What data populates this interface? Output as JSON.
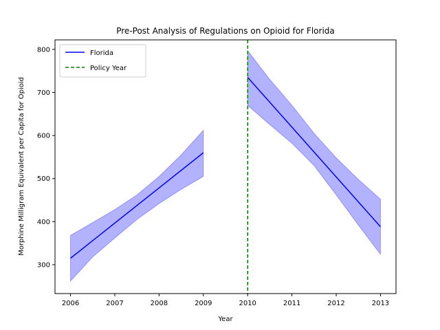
{
  "chart_data": {
    "type": "line",
    "title": "Pre-Post Analysis of Regulations on Opioid for Florida",
    "xlabel": "Year",
    "ylabel": "Morphine Milligram Equivalent per Capita for Opioid",
    "xlim": [
      2005.65,
      2013.35
    ],
    "ylim": [
      233,
      822
    ],
    "xticks": [
      2006,
      2007,
      2008,
      2009,
      2010,
      2011,
      2012,
      2013
    ],
    "yticks": [
      300,
      400,
      500,
      600,
      700,
      800
    ],
    "grid": false,
    "legend_position": "upper-left",
    "colors": {
      "line": "#0000ff",
      "band": "#0000ff",
      "policy": "#008000"
    },
    "series": [
      {
        "name": "Florida",
        "segments": [
          {
            "x": [
              2006,
              2009
            ],
            "y": [
              315,
              560
            ],
            "band": {
              "x": [
                2006,
                2006.5,
                2007,
                2007.5,
                2008,
                2008.5,
                2009
              ],
              "lower": [
                262,
                318,
                362,
                405,
                442,
                475,
                505
              ],
              "upper": [
                368,
                398,
                428,
                462,
                505,
                555,
                612
              ]
            }
          },
          {
            "x": [
              2010,
              2013
            ],
            "y": [
              735,
              388
            ],
            "band": {
              "x": [
                2010,
                2010.5,
                2011,
                2011.5,
                2012,
                2012.5,
                2013
              ],
              "lower": [
                670,
                625,
                582,
                530,
                462,
                392,
                324
              ],
              "upper": [
                797,
                730,
                670,
                605,
                548,
                498,
                452
              ]
            }
          }
        ]
      }
    ],
    "policy_line": {
      "name": "Policy Year",
      "x": 2010
    }
  }
}
